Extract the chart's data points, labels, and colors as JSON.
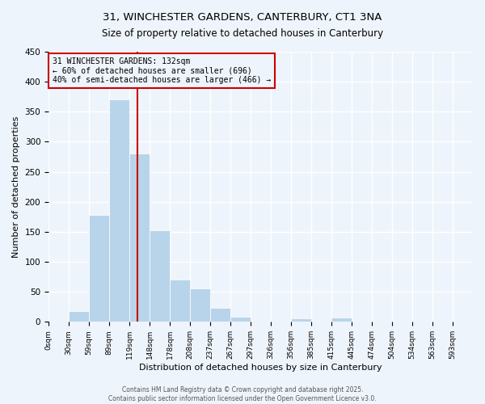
{
  "title_line1": "31, WINCHESTER GARDENS, CANTERBURY, CT1 3NA",
  "title_line2": "Size of property relative to detached houses in Canterbury",
  "xlabel": "Distribution of detached houses by size in Canterbury",
  "ylabel": "Number of detached properties",
  "bin_labels": [
    "0sqm",
    "30sqm",
    "59sqm",
    "89sqm",
    "119sqm",
    "148sqm",
    "178sqm",
    "208sqm",
    "237sqm",
    "267sqm",
    "297sqm",
    "326sqm",
    "356sqm",
    "385sqm",
    "415sqm",
    "445sqm",
    "474sqm",
    "504sqm",
    "534sqm",
    "563sqm",
    "593sqm"
  ],
  "bar_heights": [
    0,
    18,
    178,
    370,
    280,
    153,
    70,
    55,
    23,
    9,
    0,
    0,
    6,
    0,
    7,
    0,
    0,
    0,
    0,
    0,
    0
  ],
  "bar_color": "#b8d4ea",
  "property_line_bin": 4.4,
  "property_line_color": "#cc0000",
  "ylim": [
    0,
    450
  ],
  "yticks": [
    0,
    50,
    100,
    150,
    200,
    250,
    300,
    350,
    400,
    450
  ],
  "annotation_text": "31 WINCHESTER GARDENS: 132sqm\n← 60% of detached houses are smaller (696)\n40% of semi-detached houses are larger (466) →",
  "annotation_box_edgecolor": "#cc0000",
  "background_color": "#eef4fb",
  "grid_color": "#ffffff",
  "footer_line1": "Contains HM Land Registry data © Crown copyright and database right 2025.",
  "footer_line2": "Contains public sector information licensed under the Open Government Licence v3.0.",
  "fig_width": 6.0,
  "fig_height": 5.0
}
